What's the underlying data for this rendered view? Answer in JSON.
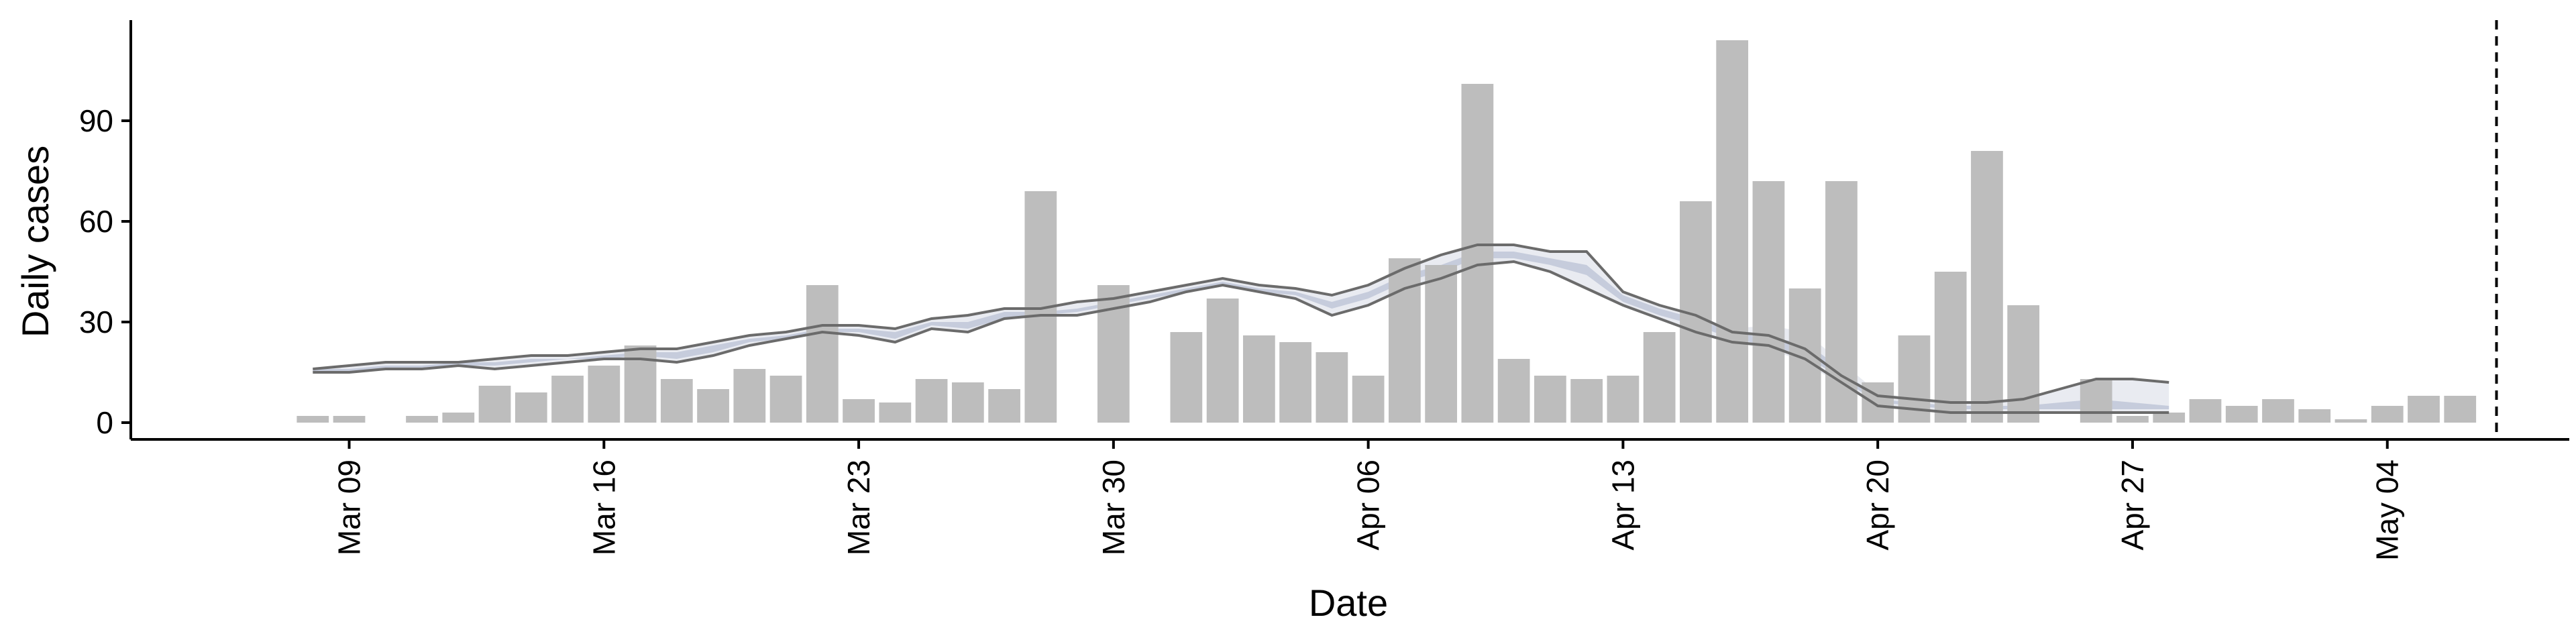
{
  "chart_data": {
    "type": "bar",
    "xlabel": "Date",
    "ylabel": "Daily cases",
    "x_tick_labels": [
      "Mar 09",
      "Mar 16",
      "Mar 23",
      "Mar 30",
      "Apr 06",
      "Apr 13",
      "Apr 20",
      "Apr 27",
      "May 04"
    ],
    "y_tick_labels": [
      "0",
      "30",
      "60",
      "90"
    ],
    "ylim": [
      -5,
      120
    ],
    "xlim": [
      "2020-03-03",
      "2020-05-09"
    ],
    "grid": false,
    "legend": "none",
    "vline_date": "2020-05-07",
    "colors": {
      "bars": "#bdbdbd",
      "band_outer": "#dadde8",
      "band_inner": "#a9b2cb",
      "lines": "#6b6b6b",
      "axis": "#000000"
    },
    "bars": {
      "dates": [
        "2020-03-08",
        "2020-03-09",
        "2020-03-10",
        "2020-03-11",
        "2020-03-12",
        "2020-03-13",
        "2020-03-14",
        "2020-03-15",
        "2020-03-16",
        "2020-03-17",
        "2020-03-18",
        "2020-03-19",
        "2020-03-20",
        "2020-03-21",
        "2020-03-22",
        "2020-03-23",
        "2020-03-24",
        "2020-03-25",
        "2020-03-26",
        "2020-03-27",
        "2020-03-28",
        "2020-03-29",
        "2020-03-30",
        "2020-03-31",
        "2020-04-01",
        "2020-04-02",
        "2020-04-03",
        "2020-04-04",
        "2020-04-05",
        "2020-04-06",
        "2020-04-07",
        "2020-04-08",
        "2020-04-09",
        "2020-04-10",
        "2020-04-11",
        "2020-04-12",
        "2020-04-13",
        "2020-04-14",
        "2020-04-15",
        "2020-04-16",
        "2020-04-17",
        "2020-04-18",
        "2020-04-19",
        "2020-04-20",
        "2020-04-21",
        "2020-04-22",
        "2020-04-23",
        "2020-04-24",
        "2020-04-25",
        "2020-04-26",
        "2020-04-27",
        "2020-04-28",
        "2020-04-29",
        "2020-04-30",
        "2020-05-01",
        "2020-05-02",
        "2020-05-03",
        "2020-05-04",
        "2020-05-05",
        "2020-05-06",
        "2020-05-07"
      ],
      "values": [
        2,
        2,
        0,
        2,
        3,
        11,
        9,
        14,
        17,
        23,
        13,
        10,
        16,
        14,
        41,
        7,
        6,
        13,
        12,
        10,
        69,
        0,
        41,
        0,
        27,
        37,
        26,
        24,
        21,
        14,
        49,
        47,
        101,
        19,
        14,
        13,
        14,
        27,
        66,
        114,
        72,
        40,
        72,
        12,
        26,
        45,
        81,
        35,
        0,
        13,
        2,
        3,
        7,
        5,
        7,
        4,
        1,
        5,
        8,
        8,
        0
      ]
    },
    "series": [
      {
        "dates": [
          "2020-03-08",
          "2020-03-09",
          "2020-03-10",
          "2020-03-11",
          "2020-03-12",
          "2020-03-13",
          "2020-03-14",
          "2020-03-15",
          "2020-03-16",
          "2020-03-17",
          "2020-03-18",
          "2020-03-19",
          "2020-03-20",
          "2020-03-21",
          "2020-03-22",
          "2020-03-23",
          "2020-03-24",
          "2020-03-25",
          "2020-03-26",
          "2020-03-27",
          "2020-03-28",
          "2020-03-29",
          "2020-03-30",
          "2020-03-31",
          "2020-04-01",
          "2020-04-02",
          "2020-04-03",
          "2020-04-04",
          "2020-04-05",
          "2020-04-06",
          "2020-04-07",
          "2020-04-08",
          "2020-04-09",
          "2020-04-10",
          "2020-04-11",
          "2020-04-12",
          "2020-04-13",
          "2020-04-14",
          "2020-04-15",
          "2020-04-16",
          "2020-04-17",
          "2020-04-18",
          "2020-04-19",
          "2020-04-20",
          "2020-04-21",
          "2020-04-22",
          "2020-04-23",
          "2020-04-24",
          "2020-04-25",
          "2020-04-26",
          "2020-04-27",
          "2020-04-28"
        ],
        "upper": [
          16,
          17,
          18,
          18,
          18,
          19,
          20,
          20,
          21,
          22,
          22,
          24,
          26,
          27,
          29,
          29,
          28,
          31,
          32,
          34,
          34,
          36,
          37,
          39,
          41,
          43,
          41,
          40,
          38,
          41,
          46,
          50,
          53,
          53,
          51,
          51,
          39,
          35,
          32,
          27,
          26,
          22,
          14,
          8,
          7,
          6,
          6,
          7,
          10,
          13,
          13,
          12
        ],
        "lower": [
          15,
          15,
          16,
          16,
          17,
          16,
          17,
          18,
          19,
          19,
          18,
          20,
          23,
          25,
          27,
          26,
          24,
          28,
          27,
          31,
          32,
          32,
          34,
          36,
          39,
          41,
          39,
          37,
          32,
          35,
          40,
          43,
          47,
          48,
          45,
          40,
          35,
          31,
          27,
          24,
          23,
          19,
          12,
          5,
          4,
          3,
          3,
          3,
          3,
          3,
          3,
          3
        ],
        "band_outer_upper": [
          16,
          17,
          18,
          18,
          18,
          19,
          20,
          20,
          21,
          22,
          22,
          24,
          26,
          27,
          29,
          29,
          28,
          31,
          32,
          34,
          34,
          36,
          37,
          39,
          41,
          43,
          41,
          40,
          38,
          41,
          46,
          50,
          53,
          53,
          51,
          51,
          39,
          35,
          32,
          28,
          29,
          27,
          18,
          9,
          7,
          6,
          6,
          7,
          10,
          13,
          13,
          12
        ],
        "band_outer_lower": [
          15,
          15,
          16,
          16,
          17,
          16,
          17,
          18,
          19,
          19,
          18,
          20,
          23,
          25,
          27,
          26,
          24,
          28,
          27,
          31,
          32,
          32,
          34,
          36,
          39,
          41,
          39,
          37,
          32,
          35,
          40,
          43,
          47,
          48,
          45,
          40,
          35,
          31,
          27,
          24,
          22,
          18,
          11,
          5,
          4,
          3,
          3,
          3,
          3,
          3,
          3,
          3
        ],
        "band_inner_upper": [
          16,
          16,
          17,
          17,
          18,
          18,
          19,
          19,
          20,
          21,
          21,
          23,
          25,
          26,
          28,
          28,
          27,
          30,
          30,
          33,
          33,
          34,
          36,
          38,
          40,
          42,
          40,
          39,
          36,
          39,
          44,
          47,
          51,
          51,
          49,
          47,
          38,
          34,
          31,
          27,
          25,
          24,
          16,
          7,
          6,
          5,
          5,
          5,
          6,
          7,
          6,
          5
        ],
        "band_inner_lower": [
          15,
          15,
          16,
          16,
          17,
          17,
          18,
          19,
          19,
          20,
          19,
          21,
          24,
          25,
          27,
          27,
          25,
          29,
          28,
          31,
          32,
          33,
          35,
          37,
          39,
          41,
          39,
          38,
          34,
          37,
          42,
          45,
          49,
          49,
          47,
          44,
          36,
          32,
          29,
          25,
          23,
          20,
          13,
          6,
          5,
          4,
          4,
          4,
          4,
          4,
          4,
          4
        ]
      }
    ]
  }
}
